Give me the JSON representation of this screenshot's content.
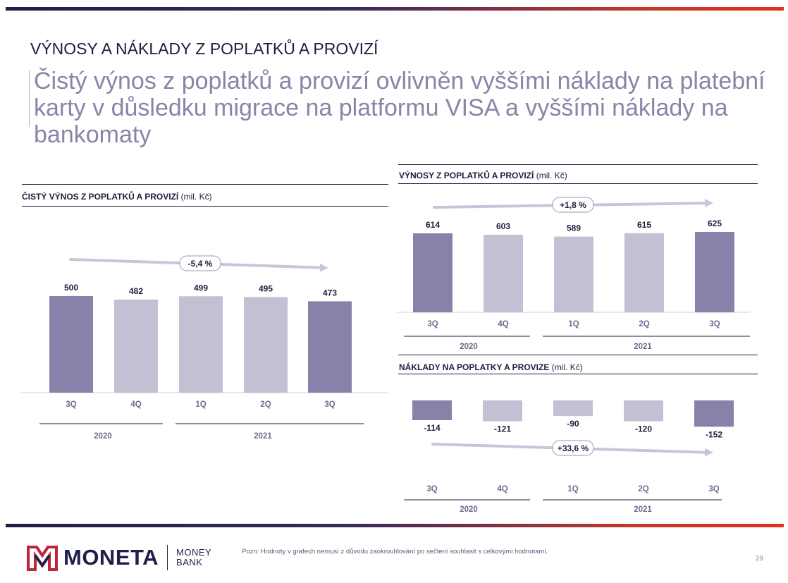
{
  "section_title": "VÝNOSY A NÁKLADY Z POPLATKŮ A PROVIZÍ",
  "headline": "Čistý výnos z poplatků a provizí ovlivněn vyššími náklady na platební karty v důsledku migrace na platformu VISA a vyššími náklady na bankomaty",
  "colors": {
    "dark_bar": "#8882aa",
    "light_bar": "#c3c0d4",
    "arrow": "#c8c5d9",
    "text": "#1d1d3f"
  },
  "chart_data": [
    {
      "id": "net",
      "type": "bar",
      "title": "ČISTÝ VÝNOS Z POPLATKŮ A PROVIZÍ",
      "unit": "(mil. Kč)",
      "categories": [
        "3Q",
        "4Q",
        "1Q",
        "2Q",
        "3Q"
      ],
      "values": [
        500,
        482,
        499,
        495,
        473
      ],
      "labels": [
        "500",
        "482",
        "499",
        "495",
        "473"
      ],
      "highlight": [
        true,
        false,
        false,
        false,
        true
      ],
      "years": [
        "2020",
        "2021"
      ],
      "change": "-5,4 %"
    },
    {
      "id": "income",
      "type": "bar",
      "title": "VÝNOSY Z POPLATKŮ A PROVIZÍ",
      "unit": "(mil. Kč)",
      "categories": [
        "3Q",
        "4Q",
        "1Q",
        "2Q",
        "3Q"
      ],
      "values": [
        614,
        603,
        589,
        615,
        625
      ],
      "labels": [
        "614",
        "603",
        "589",
        "615",
        "625"
      ],
      "highlight": [
        true,
        false,
        false,
        false,
        true
      ],
      "years": [
        "2020",
        "2021"
      ],
      "change": "+1,8 %"
    },
    {
      "id": "costs",
      "type": "bar",
      "title": "NÁKLADY NA POPLATKY A PROVIZE",
      "unit": "(mil. Kč)",
      "categories": [
        "3Q",
        "4Q",
        "1Q",
        "2Q",
        "3Q"
      ],
      "values": [
        -114,
        -121,
        -90,
        -120,
        -152
      ],
      "labels": [
        "-114",
        "-121",
        "-90",
        "-120",
        "-152"
      ],
      "highlight": [
        true,
        false,
        false,
        false,
        true
      ],
      "years": [
        "2020",
        "2021"
      ],
      "change": "+33,6 %"
    }
  ],
  "footer": {
    "logo_text": "MONETA",
    "logo_sub_1": "MONEY",
    "logo_sub_2": "BANK",
    "note": "Pozn: Hodnoty v grafech nemusí z důvodu zaokrouhlování po sečtení souhlasit s celkovými hodnotami.",
    "page": "29"
  }
}
